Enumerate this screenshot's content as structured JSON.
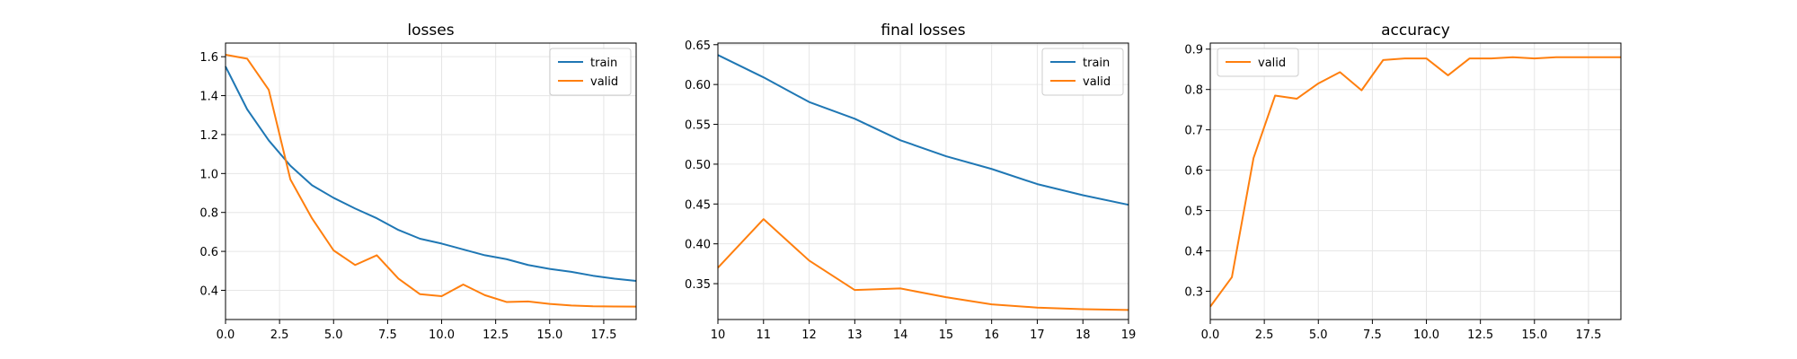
{
  "chart_data": [
    {
      "type": "line",
      "title": "losses",
      "xlabel": "",
      "ylabel": "",
      "xlim": [
        0,
        19
      ],
      "ylim": [
        0.25,
        1.67
      ],
      "xticks": [
        0.0,
        2.5,
        5.0,
        7.5,
        10.0,
        12.5,
        15.0,
        17.5
      ],
      "xtick_labels": [
        "0.0",
        "2.5",
        "5.0",
        "7.5",
        "10.0",
        "12.5",
        "15.0",
        "17.5"
      ],
      "yticks": [
        0.4,
        0.6,
        0.8,
        1.0,
        1.2,
        1.4,
        1.6
      ],
      "ytick_labels": [
        "0.4",
        "0.6",
        "0.8",
        "1.0",
        "1.2",
        "1.4",
        "1.6"
      ],
      "grid": true,
      "legend": "top-right",
      "x": [
        0,
        1,
        2,
        3,
        4,
        5,
        6,
        7,
        8,
        9,
        10,
        11,
        12,
        13,
        14,
        15,
        16,
        17,
        18,
        19
      ],
      "series": [
        {
          "name": "train",
          "color": "#1f77b4",
          "values": [
            1.55,
            1.33,
            1.17,
            1.04,
            0.94,
            0.875,
            0.82,
            0.77,
            0.71,
            0.665,
            0.64,
            0.61,
            0.58,
            0.56,
            0.53,
            0.51,
            0.495,
            0.475,
            0.46,
            0.448
          ]
        },
        {
          "name": "valid",
          "color": "#ff7f0e",
          "values": [
            1.61,
            1.59,
            1.43,
            0.97,
            0.77,
            0.605,
            0.53,
            0.58,
            0.46,
            0.38,
            0.37,
            0.43,
            0.375,
            0.34,
            0.343,
            0.33,
            0.322,
            0.318,
            0.317,
            0.316
          ]
        }
      ]
    },
    {
      "type": "line",
      "title": "final losses",
      "xlabel": "",
      "ylabel": "",
      "xlim": [
        10,
        19
      ],
      "ylim": [
        0.305,
        0.652
      ],
      "xticks": [
        10,
        11,
        12,
        13,
        14,
        15,
        16,
        17,
        18,
        19
      ],
      "xtick_labels": [
        "10",
        "11",
        "12",
        "13",
        "14",
        "15",
        "16",
        "17",
        "18",
        "19"
      ],
      "yticks": [
        0.35,
        0.4,
        0.45,
        0.5,
        0.55,
        0.6,
        0.65
      ],
      "ytick_labels": [
        "0.35",
        "0.40",
        "0.45",
        "0.50",
        "0.55",
        "0.60",
        "0.65"
      ],
      "grid": true,
      "legend": "top-right",
      "x": [
        10,
        11,
        12,
        13,
        14,
        15,
        16,
        17,
        18,
        19
      ],
      "series": [
        {
          "name": "train",
          "color": "#1f77b4",
          "values": [
            0.637,
            0.609,
            0.578,
            0.557,
            0.53,
            0.51,
            0.494,
            0.475,
            0.461,
            0.449
          ]
        },
        {
          "name": "valid",
          "color": "#ff7f0e",
          "values": [
            0.37,
            0.431,
            0.379,
            0.342,
            0.344,
            0.333,
            0.324,
            0.32,
            0.318,
            0.317
          ]
        }
      ]
    },
    {
      "type": "line",
      "title": "accuracy",
      "xlabel": "",
      "ylabel": "",
      "xlim": [
        0,
        19
      ],
      "ylim": [
        0.23,
        0.915
      ],
      "xticks": [
        0.0,
        2.5,
        5.0,
        7.5,
        10.0,
        12.5,
        15.0,
        17.5
      ],
      "xtick_labels": [
        "0.0",
        "2.5",
        "5.0",
        "7.5",
        "10.0",
        "12.5",
        "15.0",
        "17.5"
      ],
      "yticks": [
        0.3,
        0.4,
        0.5,
        0.6,
        0.7,
        0.8,
        0.9
      ],
      "ytick_labels": [
        "0.3",
        "0.4",
        "0.5",
        "0.6",
        "0.7",
        "0.8",
        "0.9"
      ],
      "grid": true,
      "legend": "top-left",
      "x": [
        0,
        1,
        2,
        3,
        4,
        5,
        6,
        7,
        8,
        9,
        10,
        11,
        12,
        13,
        14,
        15,
        16,
        17,
        18,
        19
      ],
      "series": [
        {
          "name": "valid",
          "color": "#ff7f0e",
          "values": [
            0.262,
            0.335,
            0.63,
            0.785,
            0.777,
            0.815,
            0.843,
            0.798,
            0.873,
            0.877,
            0.877,
            0.835,
            0.877,
            0.877,
            0.88,
            0.877,
            0.88,
            0.88,
            0.88,
            0.88
          ]
        }
      ]
    }
  ]
}
